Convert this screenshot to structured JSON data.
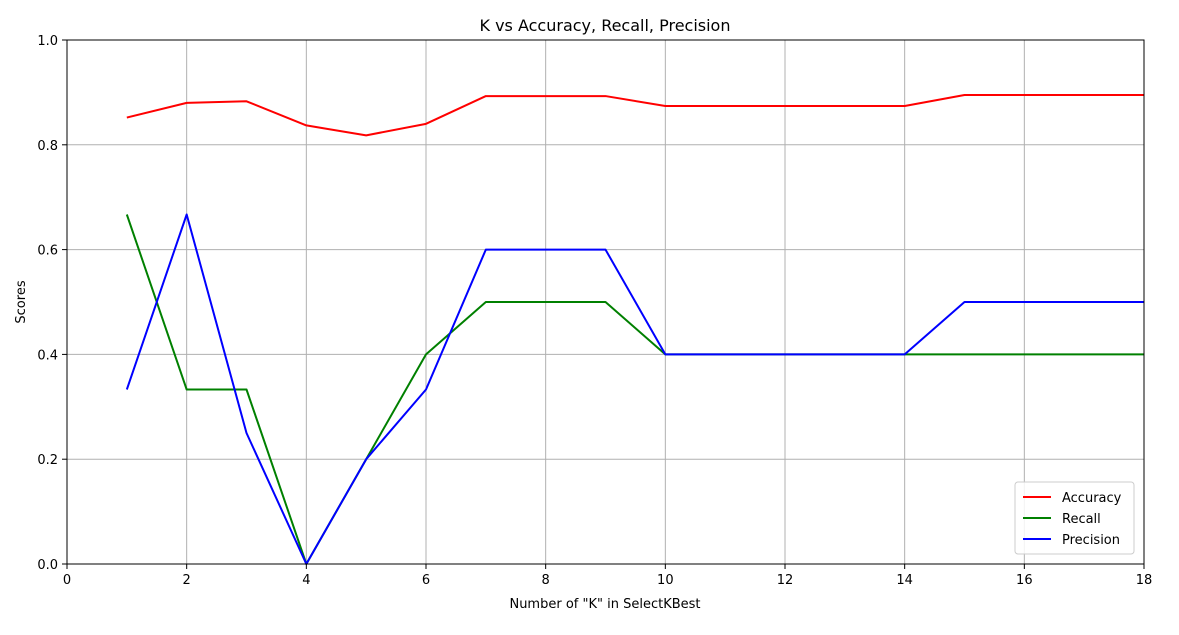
{
  "chart_data": {
    "type": "line",
    "title": "K vs Accuracy, Recall, Precision",
    "xlabel": "Number of \"K\" in SelectKBest",
    "ylabel": "Scores",
    "xlim": [
      0,
      18
    ],
    "ylim": [
      0,
      1.0
    ],
    "x_ticks": [
      0,
      2,
      4,
      6,
      8,
      10,
      12,
      14,
      16,
      18
    ],
    "y_ticks": [
      0.0,
      0.2,
      0.4,
      0.6,
      0.8,
      1.0
    ],
    "y_tick_labels": [
      "0.0",
      "0.2",
      "0.4",
      "0.6",
      "0.8",
      "1.0"
    ],
    "grid": true,
    "legend_position": "bottom-right",
    "x": [
      1,
      2,
      3,
      4,
      5,
      6,
      7,
      8,
      9,
      10,
      11,
      12,
      13,
      14,
      15,
      16,
      17,
      18
    ],
    "series": [
      {
        "name": "Accuracy",
        "color": "#ff0000",
        "values": [
          0.852,
          0.88,
          0.883,
          0.837,
          0.818,
          0.84,
          0.893,
          0.893,
          0.893,
          0.874,
          0.874,
          0.874,
          0.874,
          0.874,
          0.895,
          0.895,
          0.895,
          0.895
        ]
      },
      {
        "name": "Recall",
        "color": "#008000",
        "values": [
          0.667,
          0.333,
          0.333,
          0.0,
          0.2,
          0.4,
          0.5,
          0.5,
          0.5,
          0.4,
          0.4,
          0.4,
          0.4,
          0.4,
          0.4,
          0.4,
          0.4,
          0.4
        ]
      },
      {
        "name": "Precision",
        "color": "#0000ff",
        "values": [
          0.333,
          0.667,
          0.25,
          0.0,
          0.2,
          0.333,
          0.6,
          0.6,
          0.6,
          0.4,
          0.4,
          0.4,
          0.4,
          0.4,
          0.5,
          0.5,
          0.5,
          0.5
        ]
      }
    ]
  }
}
